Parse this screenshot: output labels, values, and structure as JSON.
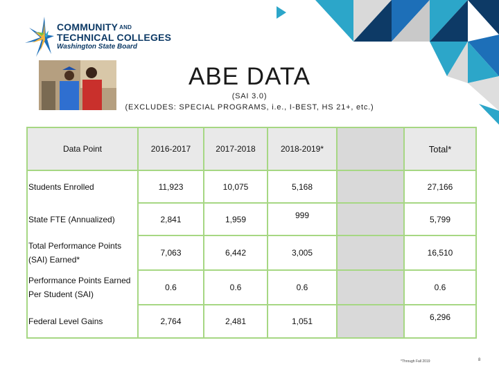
{
  "logo": {
    "line1": "COMMUNITY",
    "line1_and": "AND",
    "line2": "TECHNICAL COLLEGES",
    "line3": "Washington State Board"
  },
  "slide": {
    "title": "ABE DATA",
    "subtitle_line1": "(SAI 3.0)",
    "subtitle_line2": "(EXCLUDES: SPECIAL PROGRAMS, i.e., I-BEST, HS 21+, etc.)"
  },
  "table": {
    "headers": {
      "data_point": "Data Point",
      "y1": "2016-2017",
      "y2": "2017-2018",
      "y3": "2018-2019*",
      "blank": "",
      "total": "Total*"
    },
    "rows": [
      {
        "label": "Students Enrolled",
        "v1": "11,923",
        "v2": "10,075",
        "v3": "5,168",
        "total": "27,166"
      },
      {
        "label": "State FTE (Annualized)",
        "v1": "2,841",
        "v2": "1,959",
        "v3": "999",
        "total": "5,799"
      },
      {
        "label": "Total Performance Points (SAI) Earned*",
        "v1": "7,063",
        "v2": "6,442",
        "v3": "3,005",
        "total": "16,510"
      },
      {
        "label": "Performance Points Earned Per Student (SAI)",
        "v1": "0.6",
        "v2": "0.6",
        "v3": "0.6",
        "total": "0.6"
      },
      {
        "label": "Federal Level Gains",
        "v1": "2,764",
        "v2": "2,481",
        "v3": "1,051",
        "total": "6,296"
      }
    ]
  },
  "footer": {
    "footnote": "*Through Fall 2019",
    "page_number": "8"
  },
  "colors": {
    "brand_navy": "#0d3a66",
    "accent_teal": "#2ca6c9",
    "accent_blue": "#1d6fb8",
    "table_border_green": "#a6d783",
    "header_gray": "#e9e9e9"
  },
  "icons": {
    "play": "play-triangle-icon",
    "logo_mark": "star-burst-logo-icon"
  }
}
